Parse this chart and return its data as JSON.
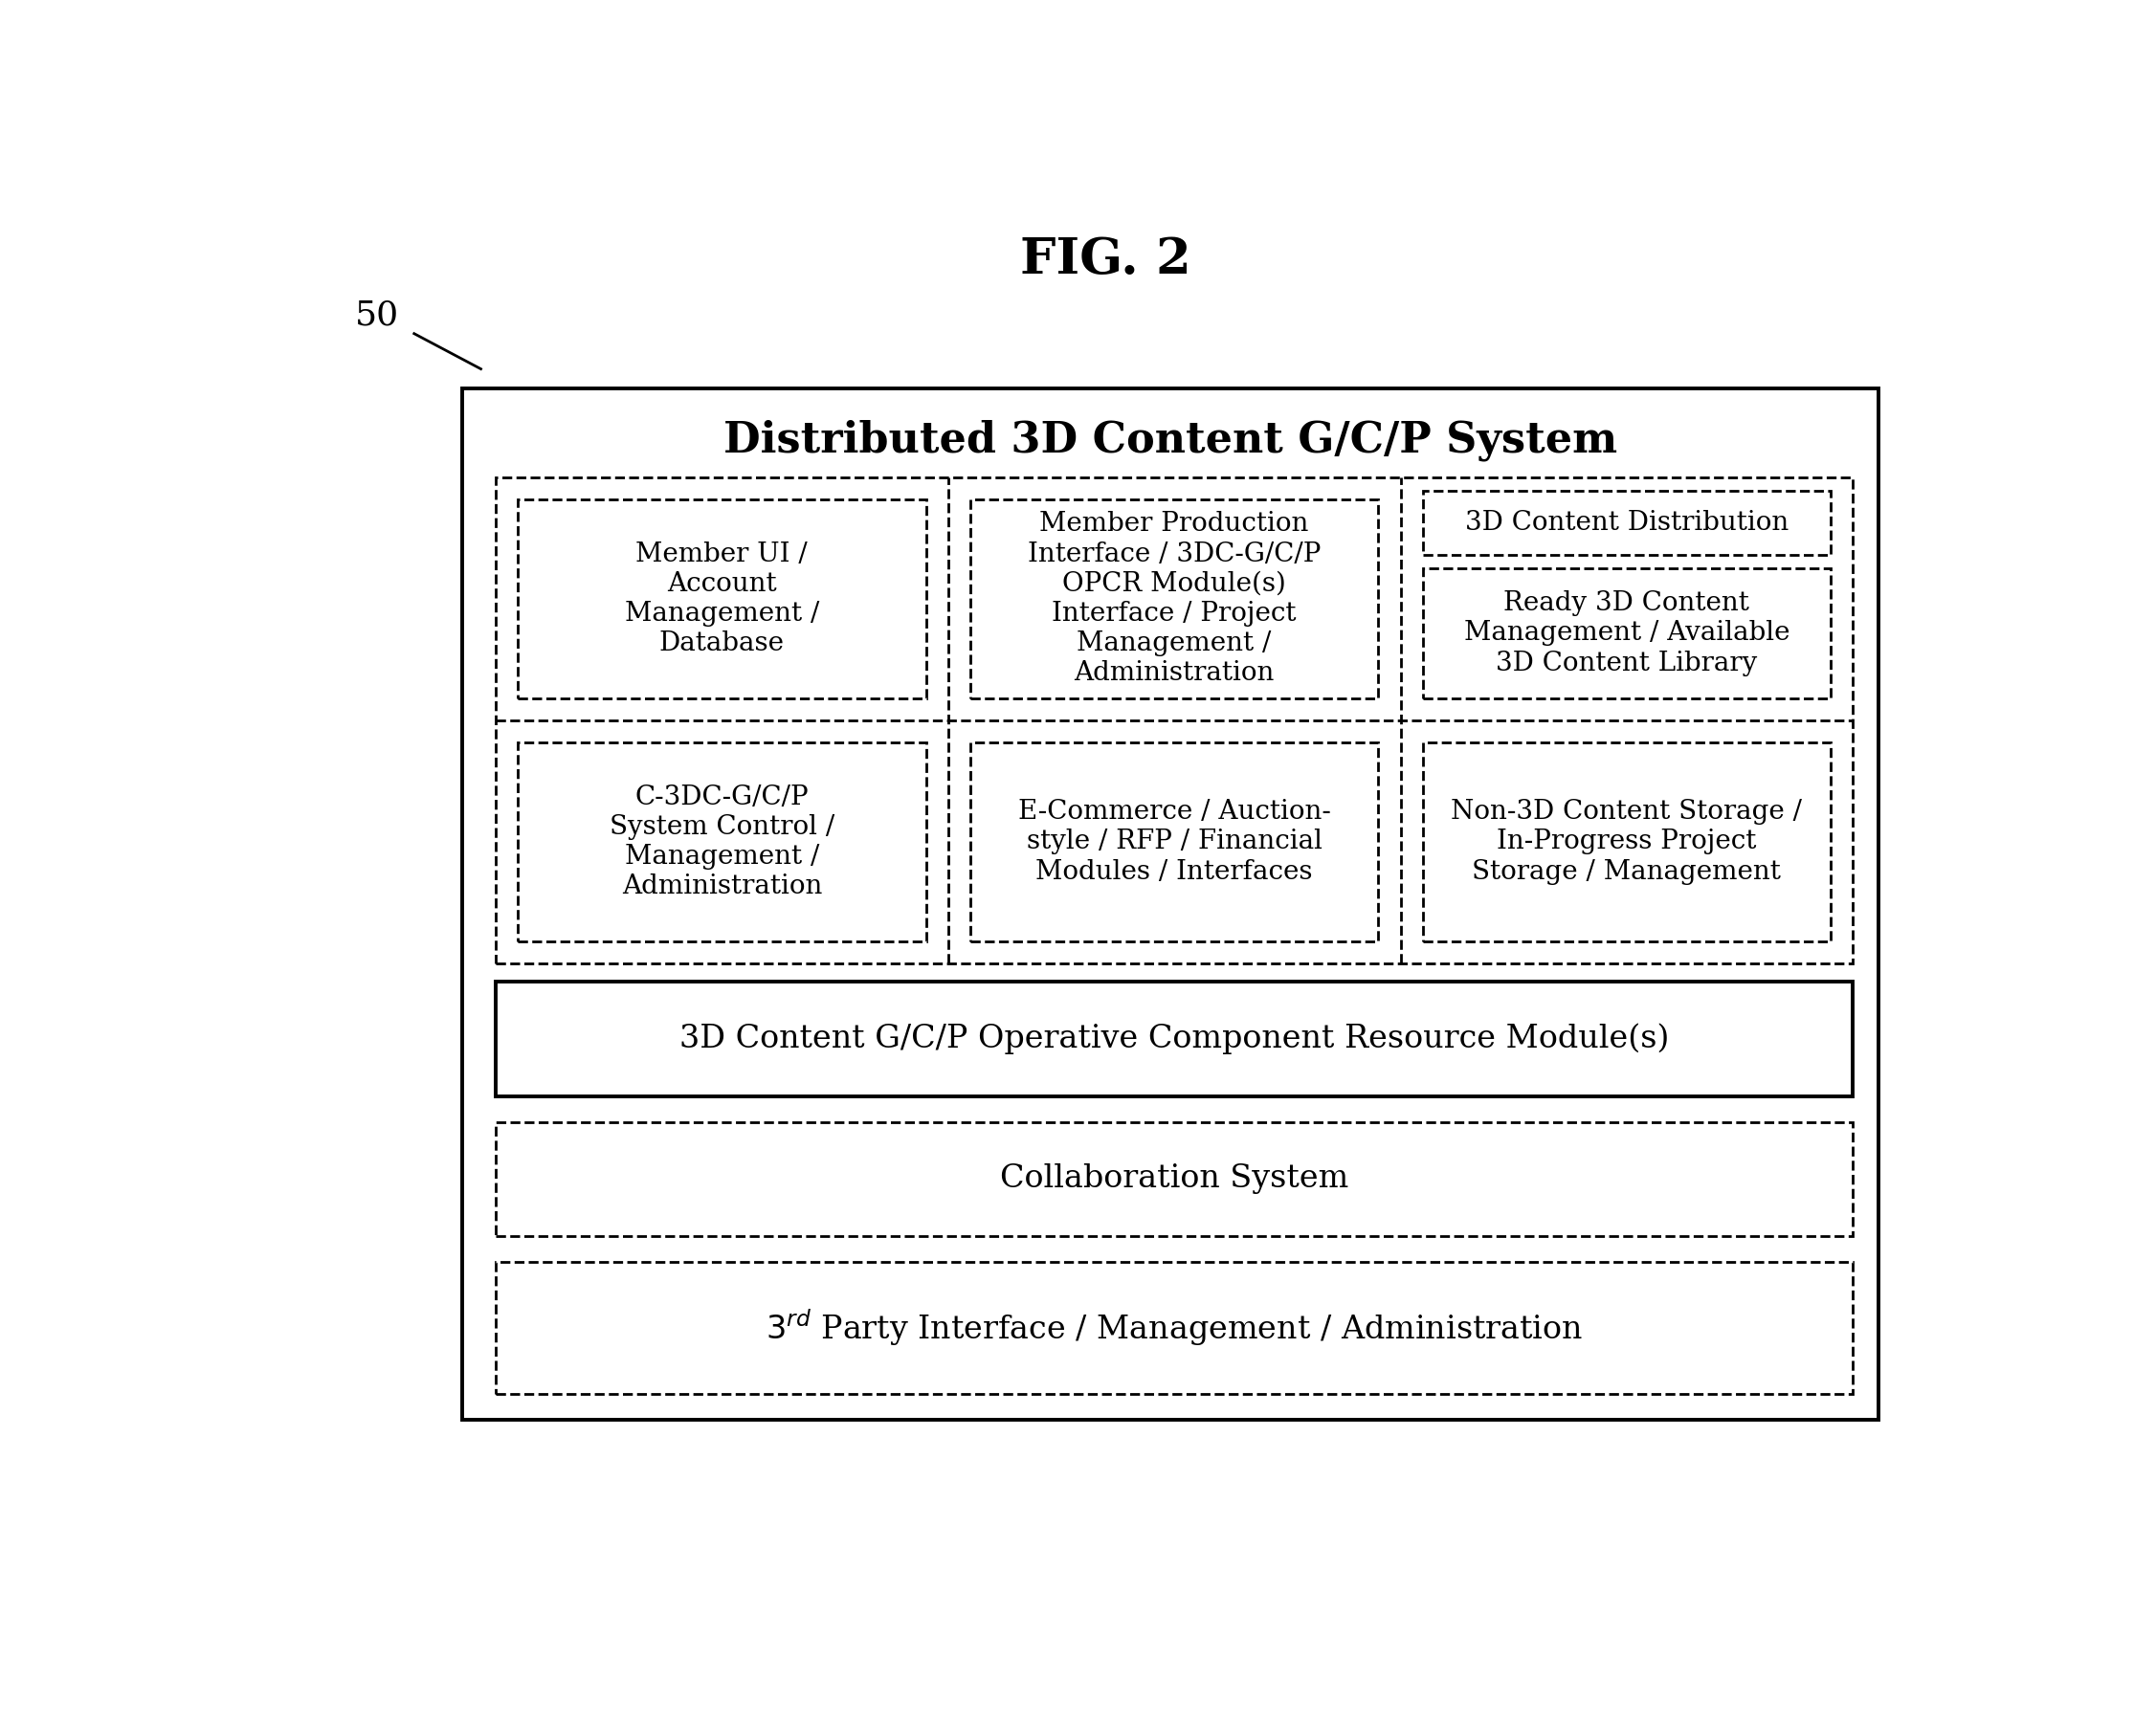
{
  "title": "FIG. 2",
  "label_50": "50",
  "bg_color": "#ffffff",
  "main_box_label": "Distributed 3D Content G/C/P System",
  "member_ui": "Member UI /\nAccount\nManagement /\nDatabase",
  "member_prod": "Member Production\nInterface / 3DC-G/C/P\nOPCR Module(s)\nInterface / Project\nManagement /\nAdministration",
  "ready_3d": "Ready 3D Content\nManagement / Available\n3D Content Library",
  "c3dc": "C-3DC-G/C/P\nSystem Control /\nManagement /\nAdministration",
  "ecommerce": "E-Commerce / Auction-\nstyle / RFP / Financial\nModules / Interfaces",
  "non3d": "Non-3D Content Storage /\nIn-Progress Project\nStorage / Management",
  "dist3d": "3D Content Distribution",
  "operative": "3D Content G/C/P Operative Component Resource Module(s)",
  "collab": "Collaboration System",
  "third_party": "$3^{rd}$ Party Interface / Management / Administration",
  "text_color": "#000000",
  "line_color": "#000000"
}
